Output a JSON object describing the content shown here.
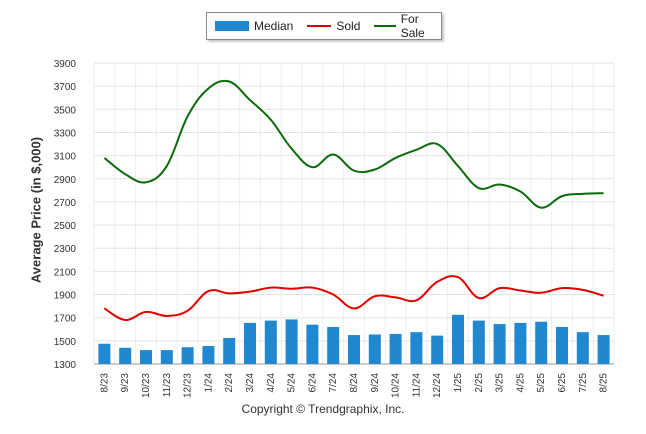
{
  "chart_data": {
    "type": "bar",
    "title": "",
    "ylabel": "Average Price (in $,000)",
    "xlabel": "",
    "ylim": [
      1300,
      3900
    ],
    "yticks": [
      1300,
      1500,
      1700,
      1900,
      2100,
      2300,
      2500,
      2700,
      2900,
      3100,
      3300,
      3500,
      3700,
      3900
    ],
    "grid": true,
    "legend_position": "top",
    "categories": [
      "8/23",
      "9/23",
      "10/23",
      "11/23",
      "12/23",
      "1/24",
      "2/24",
      "3/24",
      "4/24",
      "5/24",
      "6/24",
      "7/24",
      "8/24",
      "9/24",
      "10/24",
      "11/24",
      "12/24",
      "1/25",
      "2/25",
      "3/25",
      "4/25",
      "5/25",
      "6/25",
      "7/25",
      "8/25"
    ],
    "series": [
      {
        "name": "Median",
        "kind": "bar",
        "color": "#1f88d0",
        "values": [
          1475,
          1440,
          1420,
          1420,
          1445,
          1455,
          1525,
          1655,
          1675,
          1685,
          1640,
          1620,
          1550,
          1555,
          1560,
          1575,
          1545,
          1725,
          1675,
          1645,
          1655,
          1665,
          1620,
          1575,
          1550
        ]
      },
      {
        "name": "Sold",
        "kind": "line",
        "color": "#e00000",
        "values": [
          1780,
          1680,
          1750,
          1715,
          1760,
          1930,
          1910,
          1925,
          1960,
          1950,
          1960,
          1900,
          1780,
          1885,
          1875,
          1850,
          2010,
          2050,
          1870,
          1955,
          1935,
          1915,
          1955,
          1940,
          1890
        ]
      },
      {
        "name": "For Sale",
        "kind": "line",
        "color": "#0a6b0a",
        "values": [
          3080,
          2940,
          2870,
          3010,
          3440,
          3680,
          3740,
          3580,
          3410,
          3160,
          3000,
          3110,
          2970,
          2980,
          3080,
          3150,
          3200,
          3010,
          2820,
          2850,
          2790,
          2650,
          2750,
          2770,
          2775
        ]
      }
    ]
  },
  "legend": {
    "median": "Median",
    "sold": "Sold",
    "for_sale": "For Sale"
  },
  "footer": {
    "copyright": "Copyright © Trendgraphix, Inc."
  }
}
